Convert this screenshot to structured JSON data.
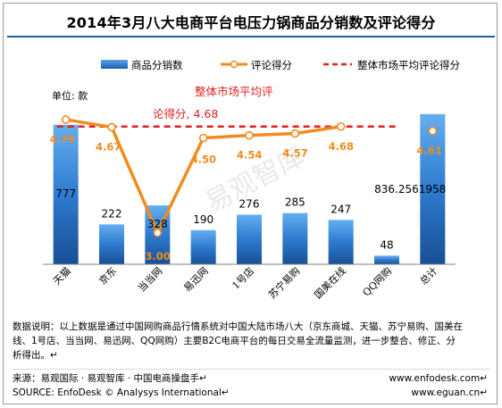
{
  "chart_data": {
    "type": "bar",
    "title": "2014年3月八大电商平台电压力锅商品分销数及评论得分",
    "unit_label": "单位: 款",
    "categories": [
      "天猫",
      "京东",
      "当当网",
      "易迅网",
      "1号店",
      "苏宁易购",
      "国美在线",
      "QQ网购",
      "总计"
    ],
    "series": [
      {
        "name": "商品分销数",
        "kind": "bar",
        "values": [
          777,
          222,
          328,
          190,
          276,
          285,
          247,
          48,
          836.2561958
        ]
      },
      {
        "name": "评论得分",
        "kind": "line",
        "values": [
          4.79,
          4.67,
          3.0,
          4.5,
          4.54,
          4.57,
          4.68,
          null,
          4.61
        ]
      },
      {
        "name": "整体市场平均评论得分",
        "kind": "reference-line",
        "value": 4.68
      }
    ],
    "bar_labels": [
      "777",
      "222",
      "328",
      "190",
      "276",
      "285",
      "247",
      "48",
      "836.2561958"
    ],
    "score_labels": [
      "4.79",
      "4.67",
      "3.00",
      "4.50",
      "4.54",
      "4.57",
      "4.68",
      "",
      "4.61"
    ],
    "annotation": {
      "line1": "整体市场平均评",
      "line2": "论得分, 4.68"
    },
    "watermark": "易观智库",
    "colors": {
      "bar": "#2e7bd0",
      "score_line": "#f28b1e",
      "avg_line": "#e02020",
      "title_rule": "#1f5fae"
    }
  },
  "footer": {
    "note_line1": "数据说明：以上数据是通过中国网购商品行情系统对中国大陆市场八大（京东商城、天猫、苏宁易购、国美在",
    "note_line2": "线、1号店、当当网、易迅网、QQ网购）主要B2C电商平台的每日交易全流量监测，进一步整合、修正、分",
    "note_line3": "析得出。↵",
    "source_line1": "来源：易观国际 · 易观智库 · 中国电商操盘手↵",
    "source_line2": "SOURCE: EnfoDesk © Analysys International↵",
    "web_line1": "www.enfodesk.com↵",
    "web_line2": "www.eguan.cn↵"
  }
}
